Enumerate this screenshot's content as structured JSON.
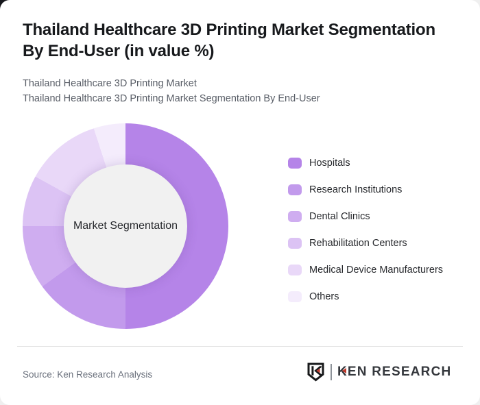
{
  "page": {
    "title_line1": "Thailand Healthcare 3D Printing Market Segmentation",
    "title_line2": "By End-User (in value %)",
    "subtitle_line1": "Thailand Healthcare 3D Printing Market",
    "subtitle_line2": "Thailand Healthcare 3D Printing Market Segmentation By End-User",
    "source": "Source: Ken Research Analysis",
    "brand": "KEN RESEARCH"
  },
  "chart_data": {
    "type": "pie",
    "subtype": "donut",
    "title": "Thailand Healthcare 3D Printing Market Segmentation By End-User (in value %)",
    "center_label": "Market Segmentation",
    "categories": [
      "Hospitals",
      "Research Institutions",
      "Dental Clinics",
      "Rehabilitation Centers",
      "Medical Device Manufacturers",
      "Others"
    ],
    "values": [
      50,
      15,
      10,
      8,
      12,
      5
    ],
    "unit": "value %",
    "colors": [
      "#b584e8",
      "#c29aec",
      "#cfadf0",
      "#dcc3f4",
      "#e9d8f8",
      "#f4ecfc"
    ],
    "start_angle_deg": 0,
    "direction": "clockwise",
    "legend_position": "right",
    "hole_color": "#f1f1f1",
    "brand_red": "#c0392b",
    "logo_dark": "#17181a"
  }
}
